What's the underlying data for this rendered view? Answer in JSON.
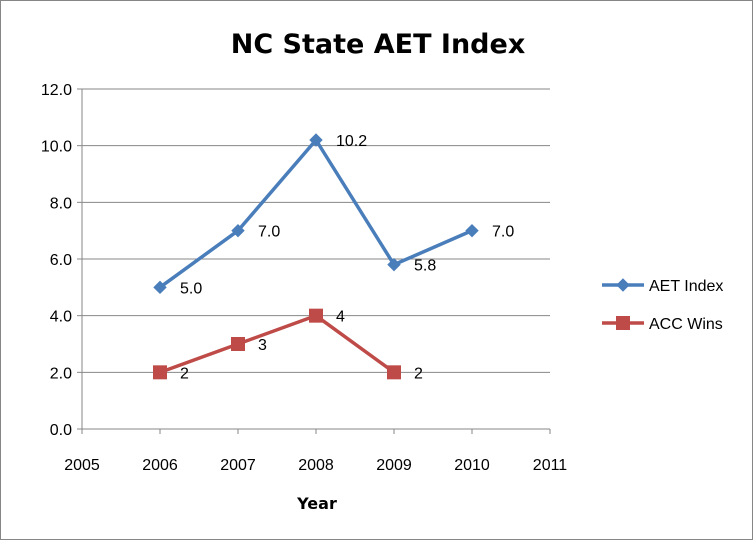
{
  "chart_data": {
    "type": "line",
    "title": "NC State AET Index",
    "xlabel": "Year",
    "ylabel": "",
    "xlim": [
      2005,
      2011
    ],
    "ylim": [
      0,
      12
    ],
    "x_ticks": [
      "2005",
      "2006",
      "2007",
      "2008",
      "2009",
      "2010",
      "2011"
    ],
    "y_ticks": [
      "0.0",
      "2.0",
      "4.0",
      "6.0",
      "8.0",
      "10.0",
      "12.0"
    ],
    "grid": "horizontal",
    "legend_position": "right",
    "series": [
      {
        "name": "AET Index",
        "color": "#4a7ebb",
        "marker": "diamond",
        "x": [
          2006,
          2007,
          2008,
          2009,
          2010
        ],
        "values": [
          5.0,
          7.0,
          10.2,
          5.8,
          7.0
        ],
        "labels": [
          "5.0",
          "7.0",
          "10.2",
          "5.8",
          "7.0"
        ]
      },
      {
        "name": "ACC Wins",
        "color": "#be4b48",
        "marker": "square",
        "x": [
          2006,
          2007,
          2008,
          2009
        ],
        "values": [
          2,
          3,
          4,
          2
        ],
        "labels": [
          "2",
          "3",
          "4",
          "2"
        ]
      }
    ]
  }
}
